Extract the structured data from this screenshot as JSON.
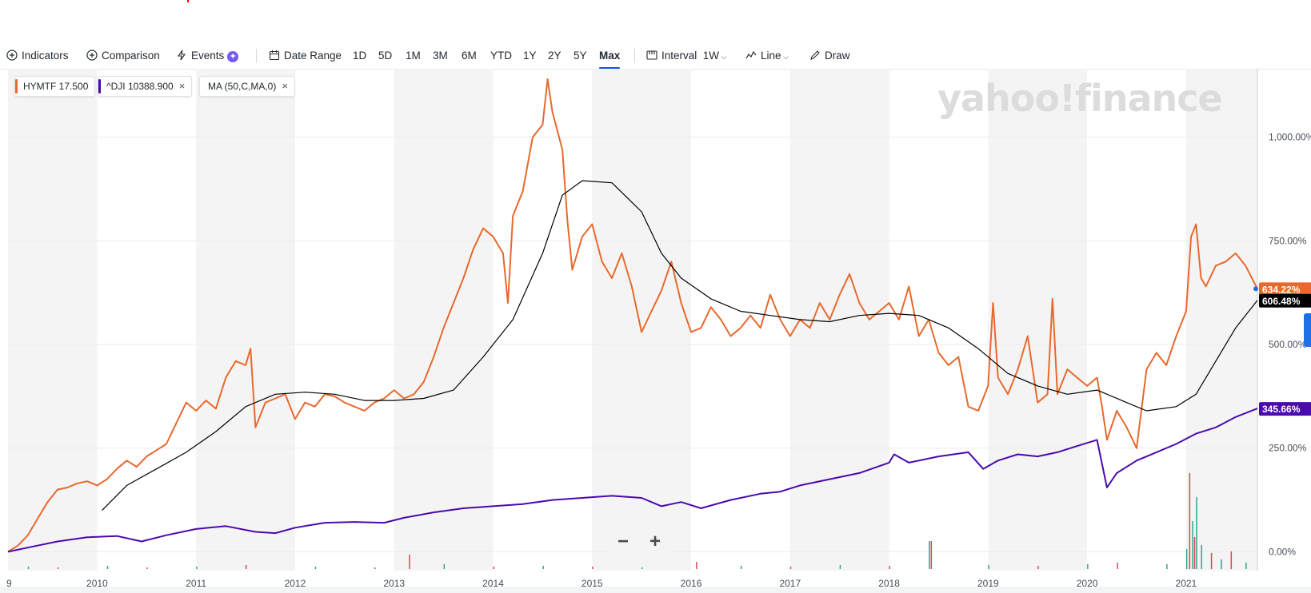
{
  "toolbar": {
    "indicators": "Indicators",
    "comparison": "Comparison",
    "events": "Events",
    "events_badge": "✦",
    "date_range": "Date Range",
    "ranges": [
      "1D",
      "5D",
      "1M",
      "3M",
      "6M",
      "YTD",
      "1Y",
      "2Y",
      "5Y",
      "Max"
    ],
    "active_range": "Max",
    "interval_label": "Interval",
    "interval_value": "1W",
    "chart_type": "Line",
    "draw": "Draw"
  },
  "legend": {
    "hymtf": "HYMTF 17.500",
    "dji": "^DJI 10388.900",
    "ma": "MA (50,C,MA,0)",
    "close_glyph": "×"
  },
  "watermark": "yahoo!finance",
  "zoom": {
    "out": "−",
    "in": "+"
  },
  "colors": {
    "hymtf": "#e8692d",
    "dji": "#4a0aaf",
    "ma": "#000000",
    "accent": "#1d4ed8",
    "up_volume": "#2ca58d",
    "down_volume": "#e0444f"
  },
  "chart_data": {
    "type": "line",
    "x_ticks": [
      "9",
      "2010",
      "2011",
      "2012",
      "2013",
      "2014",
      "2015",
      "2016",
      "2017",
      "2018",
      "2019",
      "2020",
      "2021"
    ],
    "y_ticks": [
      "0.00%",
      "250.00%",
      "500.00%",
      "750.00%",
      "1,000.00%"
    ],
    "ylim": [
      -30,
      1165
    ],
    "xlim": [
      2009.1,
      2021.72
    ],
    "grid": "horizontal",
    "last_value_labels": [
      {
        "series": "HYMTF",
        "text": "634.22%"
      },
      {
        "series": "MA",
        "text": "606.48%"
      },
      {
        "series": "^DJI",
        "text": "345.66%"
      }
    ],
    "series": [
      {
        "name": "HYMTF",
        "points": [
          [
            2009.1,
            0
          ],
          [
            2009.2,
            15
          ],
          [
            2009.3,
            40
          ],
          [
            2009.4,
            80
          ],
          [
            2009.5,
            120
          ],
          [
            2009.6,
            150
          ],
          [
            2009.7,
            155
          ],
          [
            2009.8,
            165
          ],
          [
            2009.9,
            170
          ],
          [
            2010.0,
            160
          ],
          [
            2010.1,
            175
          ],
          [
            2010.2,
            200
          ],
          [
            2010.3,
            220
          ],
          [
            2010.4,
            205
          ],
          [
            2010.5,
            230
          ],
          [
            2010.6,
            245
          ],
          [
            2010.7,
            260
          ],
          [
            2010.8,
            310
          ],
          [
            2010.9,
            360
          ],
          [
            2011.0,
            340
          ],
          [
            2011.1,
            365
          ],
          [
            2011.2,
            345
          ],
          [
            2011.3,
            420
          ],
          [
            2011.4,
            460
          ],
          [
            2011.5,
            450
          ],
          [
            2011.55,
            490
          ],
          [
            2011.6,
            300
          ],
          [
            2011.7,
            360
          ],
          [
            2011.8,
            370
          ],
          [
            2011.9,
            380
          ],
          [
            2012.0,
            320
          ],
          [
            2012.1,
            360
          ],
          [
            2012.2,
            350
          ],
          [
            2012.3,
            380
          ],
          [
            2012.4,
            375
          ],
          [
            2012.5,
            360
          ],
          [
            2012.6,
            350
          ],
          [
            2012.7,
            340
          ],
          [
            2012.8,
            360
          ],
          [
            2012.9,
            370
          ],
          [
            2013.0,
            390
          ],
          [
            2013.1,
            370
          ],
          [
            2013.2,
            380
          ],
          [
            2013.3,
            410
          ],
          [
            2013.4,
            470
          ],
          [
            2013.5,
            540
          ],
          [
            2013.6,
            600
          ],
          [
            2013.7,
            660
          ],
          [
            2013.8,
            730
          ],
          [
            2013.9,
            780
          ],
          [
            2014.0,
            760
          ],
          [
            2014.1,
            720
          ],
          [
            2014.15,
            600
          ],
          [
            2014.2,
            810
          ],
          [
            2014.3,
            870
          ],
          [
            2014.4,
            1000
          ],
          [
            2014.5,
            1030
          ],
          [
            2014.55,
            1140
          ],
          [
            2014.6,
            1060
          ],
          [
            2014.7,
            970
          ],
          [
            2014.75,
            800
          ],
          [
            2014.8,
            680
          ],
          [
            2014.9,
            760
          ],
          [
            2015.0,
            790
          ],
          [
            2015.1,
            700
          ],
          [
            2015.2,
            660
          ],
          [
            2015.3,
            720
          ],
          [
            2015.4,
            640
          ],
          [
            2015.5,
            530
          ],
          [
            2015.6,
            580
          ],
          [
            2015.7,
            630
          ],
          [
            2015.8,
            700
          ],
          [
            2015.9,
            600
          ],
          [
            2016.0,
            530
          ],
          [
            2016.1,
            540
          ],
          [
            2016.2,
            590
          ],
          [
            2016.3,
            560
          ],
          [
            2016.4,
            520
          ],
          [
            2016.5,
            540
          ],
          [
            2016.6,
            570
          ],
          [
            2016.7,
            540
          ],
          [
            2016.8,
            620
          ],
          [
            2016.9,
            560
          ],
          [
            2017.0,
            520
          ],
          [
            2017.1,
            560
          ],
          [
            2017.2,
            540
          ],
          [
            2017.3,
            600
          ],
          [
            2017.4,
            560
          ],
          [
            2017.5,
            620
          ],
          [
            2017.6,
            670
          ],
          [
            2017.7,
            600
          ],
          [
            2017.8,
            560
          ],
          [
            2017.9,
            580
          ],
          [
            2018.0,
            600
          ],
          [
            2018.1,
            560
          ],
          [
            2018.2,
            640
          ],
          [
            2018.3,
            520
          ],
          [
            2018.4,
            560
          ],
          [
            2018.5,
            480
          ],
          [
            2018.6,
            450
          ],
          [
            2018.7,
            470
          ],
          [
            2018.8,
            350
          ],
          [
            2018.9,
            340
          ],
          [
            2019.0,
            400
          ],
          [
            2019.05,
            600
          ],
          [
            2019.1,
            420
          ],
          [
            2019.2,
            380
          ],
          [
            2019.3,
            440
          ],
          [
            2019.4,
            520
          ],
          [
            2019.5,
            360
          ],
          [
            2019.6,
            380
          ],
          [
            2019.65,
            610
          ],
          [
            2019.7,
            380
          ],
          [
            2019.8,
            440
          ],
          [
            2019.9,
            420
          ],
          [
            2020.0,
            400
          ],
          [
            2020.1,
            420
          ],
          [
            2020.15,
            350
          ],
          [
            2020.2,
            270
          ],
          [
            2020.3,
            340
          ],
          [
            2020.4,
            300
          ],
          [
            2020.5,
            250
          ],
          [
            2020.6,
            440
          ],
          [
            2020.7,
            480
          ],
          [
            2020.8,
            450
          ],
          [
            2020.9,
            520
          ],
          [
            2021.0,
            580
          ],
          [
            2021.05,
            760
          ],
          [
            2021.1,
            790
          ],
          [
            2021.15,
            660
          ],
          [
            2021.2,
            640
          ],
          [
            2021.3,
            690
          ],
          [
            2021.4,
            700
          ],
          [
            2021.5,
            720
          ],
          [
            2021.6,
            690
          ],
          [
            2021.72,
            634.22
          ]
        ]
      },
      {
        "name": "MA",
        "points": [
          [
            2010.05,
            100
          ],
          [
            2010.3,
            160
          ],
          [
            2010.6,
            200
          ],
          [
            2010.9,
            240
          ],
          [
            2011.2,
            290
          ],
          [
            2011.5,
            350
          ],
          [
            2011.8,
            380
          ],
          [
            2012.1,
            385
          ],
          [
            2012.4,
            380
          ],
          [
            2012.7,
            365
          ],
          [
            2013.0,
            365
          ],
          [
            2013.3,
            370
          ],
          [
            2013.6,
            390
          ],
          [
            2013.9,
            470
          ],
          [
            2014.2,
            560
          ],
          [
            2014.5,
            720
          ],
          [
            2014.7,
            860
          ],
          [
            2014.9,
            895
          ],
          [
            2015.2,
            890
          ],
          [
            2015.5,
            820
          ],
          [
            2015.7,
            720
          ],
          [
            2015.9,
            660
          ],
          [
            2016.2,
            610
          ],
          [
            2016.5,
            580
          ],
          [
            2016.8,
            570
          ],
          [
            2017.1,
            560
          ],
          [
            2017.4,
            555
          ],
          [
            2017.7,
            570
          ],
          [
            2018.0,
            575
          ],
          [
            2018.3,
            570
          ],
          [
            2018.6,
            540
          ],
          [
            2018.9,
            490
          ],
          [
            2019.2,
            430
          ],
          [
            2019.5,
            400
          ],
          [
            2019.8,
            380
          ],
          [
            2020.1,
            390
          ],
          [
            2020.4,
            360
          ],
          [
            2020.6,
            340
          ],
          [
            2020.9,
            350
          ],
          [
            2021.1,
            380
          ],
          [
            2021.3,
            460
          ],
          [
            2021.5,
            540
          ],
          [
            2021.72,
            606.48
          ]
        ]
      },
      {
        "name": "^DJI",
        "points": [
          [
            2009.1,
            0
          ],
          [
            2009.3,
            10
          ],
          [
            2009.6,
            25
          ],
          [
            2009.9,
            35
          ],
          [
            2010.2,
            38
          ],
          [
            2010.45,
            25
          ],
          [
            2010.7,
            40
          ],
          [
            2011.0,
            55
          ],
          [
            2011.3,
            62
          ],
          [
            2011.6,
            48
          ],
          [
            2011.8,
            45
          ],
          [
            2012.0,
            58
          ],
          [
            2012.3,
            70
          ],
          [
            2012.6,
            72
          ],
          [
            2012.9,
            70
          ],
          [
            2013.1,
            82
          ],
          [
            2013.4,
            95
          ],
          [
            2013.7,
            105
          ],
          [
            2014.0,
            110
          ],
          [
            2014.3,
            115
          ],
          [
            2014.6,
            125
          ],
          [
            2014.9,
            130
          ],
          [
            2015.2,
            135
          ],
          [
            2015.5,
            130
          ],
          [
            2015.7,
            110
          ],
          [
            2015.9,
            120
          ],
          [
            2016.1,
            105
          ],
          [
            2016.4,
            125
          ],
          [
            2016.7,
            140
          ],
          [
            2016.9,
            145
          ],
          [
            2017.1,
            160
          ],
          [
            2017.4,
            175
          ],
          [
            2017.7,
            190
          ],
          [
            2018.0,
            215
          ],
          [
            2018.05,
            235
          ],
          [
            2018.2,
            215
          ],
          [
            2018.5,
            230
          ],
          [
            2018.8,
            240
          ],
          [
            2018.95,
            200
          ],
          [
            2019.1,
            220
          ],
          [
            2019.3,
            235
          ],
          [
            2019.5,
            230
          ],
          [
            2019.7,
            240
          ],
          [
            2019.9,
            255
          ],
          [
            2020.1,
            270
          ],
          [
            2020.2,
            155
          ],
          [
            2020.3,
            190
          ],
          [
            2020.5,
            220
          ],
          [
            2020.7,
            240
          ],
          [
            2020.9,
            260
          ],
          [
            2021.1,
            285
          ],
          [
            2021.3,
            300
          ],
          [
            2021.5,
            325
          ],
          [
            2021.72,
            345.66
          ]
        ]
      }
    ],
    "volume": [
      {
        "x": 2009.3,
        "v": 3,
        "up": true
      },
      {
        "x": 2009.6,
        "v": 2,
        "up": false
      },
      {
        "x": 2010.1,
        "v": 4,
        "up": true
      },
      {
        "x": 2010.5,
        "v": 2,
        "up": false
      },
      {
        "x": 2011.0,
        "v": 3,
        "up": true
      },
      {
        "x": 2011.5,
        "v": 5,
        "up": false
      },
      {
        "x": 2012.2,
        "v": 3,
        "up": true
      },
      {
        "x": 2012.8,
        "v": 2,
        "up": false
      },
      {
        "x": 2013.15,
        "v": 18,
        "up": false
      },
      {
        "x": 2013.5,
        "v": 6,
        "up": true
      },
      {
        "x": 2014.0,
        "v": 3,
        "up": false
      },
      {
        "x": 2014.5,
        "v": 4,
        "up": true
      },
      {
        "x": 2015.0,
        "v": 3,
        "up": false
      },
      {
        "x": 2015.5,
        "v": 2,
        "up": true
      },
      {
        "x": 2016.05,
        "v": 9,
        "up": false
      },
      {
        "x": 2016.5,
        "v": 4,
        "up": true
      },
      {
        "x": 2017.0,
        "v": 3,
        "up": false
      },
      {
        "x": 2017.5,
        "v": 5,
        "up": true
      },
      {
        "x": 2018.0,
        "v": 4,
        "up": false
      },
      {
        "x": 2018.4,
        "v": 35,
        "up": true
      },
      {
        "x": 2018.42,
        "v": 35,
        "up": false
      },
      {
        "x": 2019.0,
        "v": 5,
        "up": true
      },
      {
        "x": 2019.5,
        "v": 4,
        "up": false
      },
      {
        "x": 2020.0,
        "v": 6,
        "up": true
      },
      {
        "x": 2020.3,
        "v": 8,
        "up": false
      },
      {
        "x": 2020.8,
        "v": 6,
        "up": true
      },
      {
        "x": 2021.0,
        "v": 25,
        "up": true
      },
      {
        "x": 2021.03,
        "v": 120,
        "up": false
      },
      {
        "x": 2021.06,
        "v": 60,
        "up": true
      },
      {
        "x": 2021.08,
        "v": 40,
        "up": false
      },
      {
        "x": 2021.1,
        "v": 90,
        "up": true
      },
      {
        "x": 2021.15,
        "v": 30,
        "up": true
      },
      {
        "x": 2021.25,
        "v": 20,
        "up": false
      },
      {
        "x": 2021.35,
        "v": 12,
        "up": true
      },
      {
        "x": 2021.45,
        "v": 22,
        "up": false
      },
      {
        "x": 2021.6,
        "v": 8,
        "up": true
      }
    ]
  }
}
